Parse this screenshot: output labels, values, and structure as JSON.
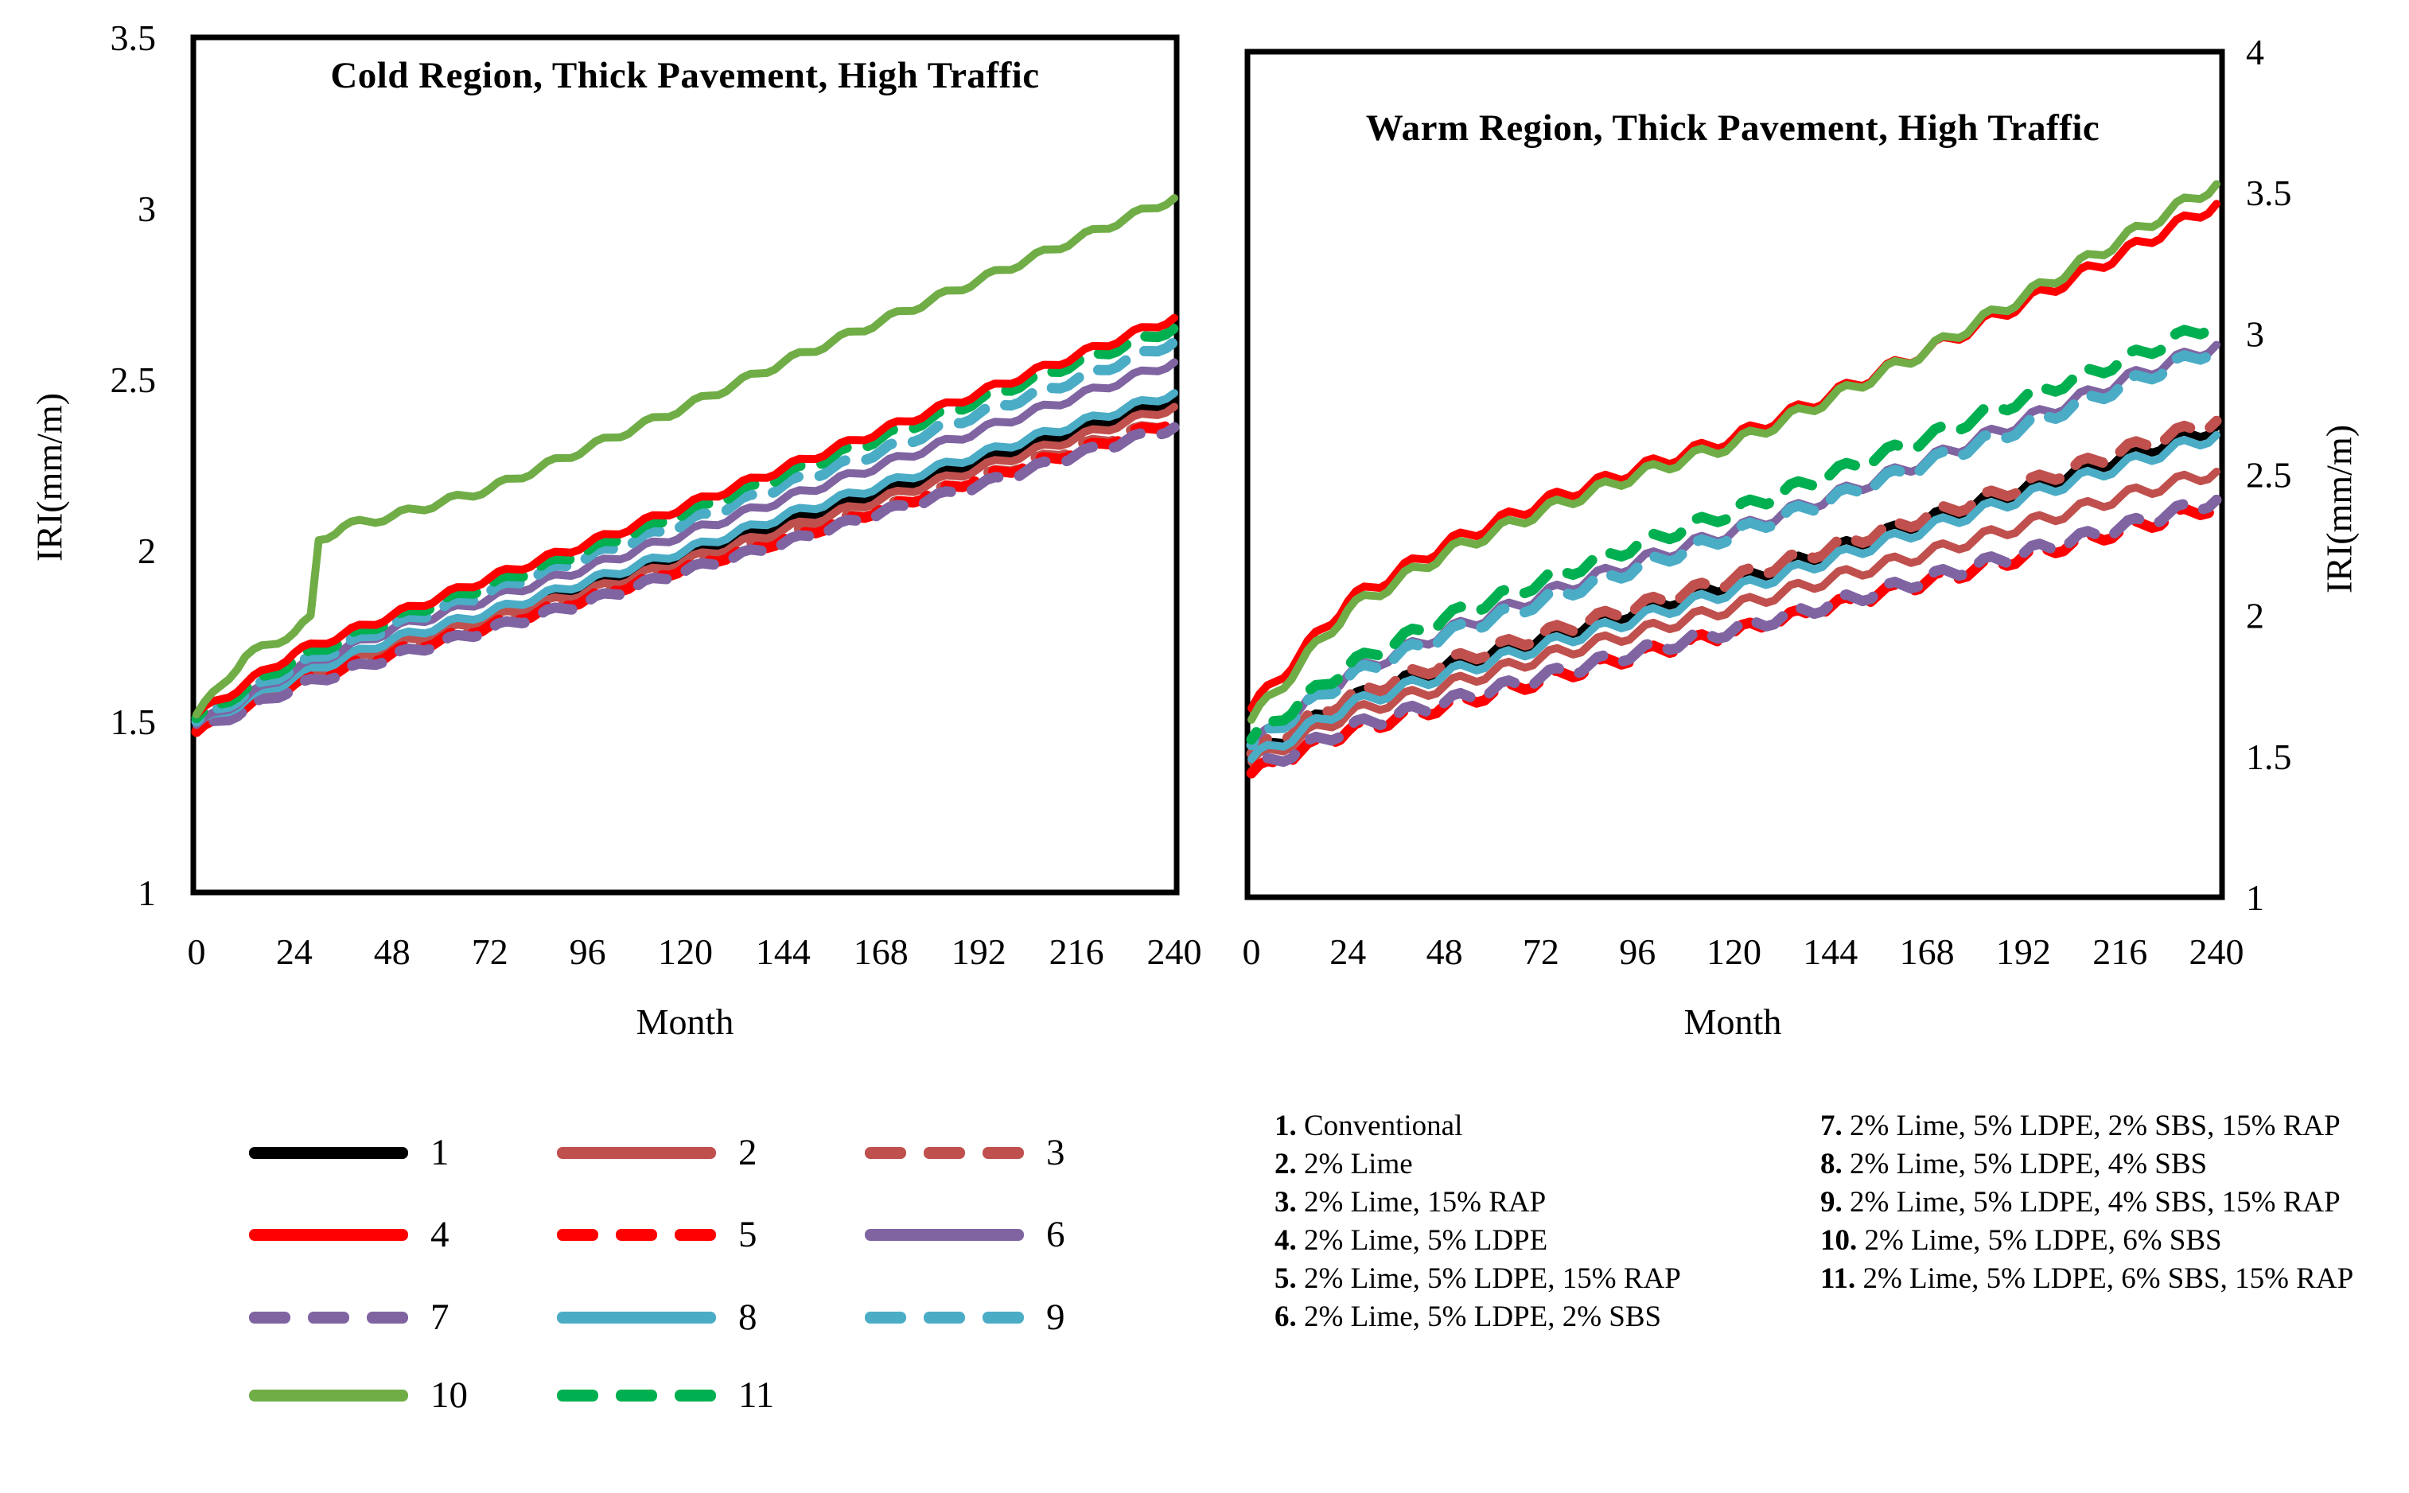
{
  "chart_data": [
    {
      "id": "cold",
      "type": "line",
      "title": "Cold Region, Thick Pavement, High Traffic",
      "xlabel": "Month",
      "ylabel": "IRI(mm/m)",
      "y_axis_side": "left",
      "xlim": [
        0,
        240
      ],
      "ylim": [
        1,
        3.5
      ],
      "grid": false,
      "x_ticks": [
        "0",
        "24",
        "48",
        "72",
        "96",
        "120",
        "144",
        "168",
        "192",
        "216",
        "240"
      ],
      "y_ticks": [
        "3.5",
        "3",
        "2.5",
        "2",
        "1.5",
        "1"
      ],
      "y_tick_values": [
        3.5,
        3,
        2.5,
        2,
        1.5,
        1
      ],
      "months": [
        0,
        24,
        48,
        72,
        96,
        120,
        144,
        168,
        192,
        216,
        240
      ],
      "seasonal_wave_amplitude": 0.011,
      "series": [
        {
          "id": "1",
          "label": "1",
          "color": "#000000",
          "dashed": false,
          "values": [
            1.48,
            1.63,
            1.73,
            1.81,
            1.9,
            1.99,
            2.08,
            2.17,
            2.26,
            2.35,
            2.44
          ]
        },
        {
          "id": "2",
          "label": "2",
          "color": "#C0504D",
          "dashed": false,
          "values": [
            1.48,
            1.62,
            1.72,
            1.8,
            1.88,
            1.97,
            2.06,
            2.15,
            2.24,
            2.33,
            2.42
          ]
        },
        {
          "id": "3",
          "label": "3",
          "color": "#C0504D",
          "dashed": true,
          "values": [
            1.47,
            1.61,
            1.7,
            1.78,
            1.86,
            1.95,
            2.04,
            2.12,
            2.21,
            2.3,
            2.38
          ]
        },
        {
          "id": "4",
          "label": "4",
          "color": "#FF0000",
          "dashed": false,
          "values": [
            1.52,
            1.7,
            1.81,
            1.92,
            2.02,
            2.13,
            2.24,
            2.35,
            2.46,
            2.57,
            2.68
          ]
        },
        {
          "id": "5",
          "label": "5",
          "color": "#FF0000",
          "dashed": true,
          "values": [
            1.47,
            1.61,
            1.7,
            1.78,
            1.86,
            1.95,
            2.03,
            2.12,
            2.21,
            2.29,
            2.38
          ]
        },
        {
          "id": "6",
          "label": "6",
          "color": "#8064A2",
          "dashed": false,
          "values": [
            1.49,
            1.65,
            1.77,
            1.86,
            1.95,
            2.05,
            2.15,
            2.25,
            2.35,
            2.45,
            2.55
          ]
        },
        {
          "id": "7",
          "label": "7",
          "color": "#8064A2",
          "dashed": true,
          "values": [
            1.47,
            1.6,
            1.69,
            1.77,
            1.85,
            1.94,
            2.02,
            2.11,
            2.19,
            2.28,
            2.36
          ]
        },
        {
          "id": "8",
          "label": "8",
          "color": "#4BACC6",
          "dashed": false,
          "values": [
            1.49,
            1.63,
            1.74,
            1.82,
            1.91,
            2.0,
            2.1,
            2.19,
            2.28,
            2.37,
            2.46
          ]
        },
        {
          "id": "9",
          "label": "9",
          "color": "#4BACC6",
          "dashed": true,
          "values": [
            1.5,
            1.66,
            1.78,
            1.88,
            1.98,
            2.08,
            2.19,
            2.29,
            2.4,
            2.5,
            2.61
          ]
        },
        {
          "id": "10",
          "label": "10",
          "color": "#70AD47",
          "dashed": false,
          "x": [
            0,
            12,
            24,
            28,
            30,
            36,
            48,
            72,
            96,
            120,
            144,
            168,
            192,
            216,
            240
          ],
          "values": [
            1.52,
            1.69,
            1.76,
            1.8,
            2.03,
            2.07,
            2.1,
            2.18,
            2.3,
            2.42,
            2.55,
            2.67,
            2.79,
            2.91,
            3.03
          ]
        },
        {
          "id": "11",
          "label": "11",
          "color": "#00B050",
          "dashed": true,
          "values": [
            1.51,
            1.68,
            1.8,
            1.9,
            2.0,
            2.11,
            2.22,
            2.33,
            2.44,
            2.55,
            2.65
          ]
        }
      ]
    },
    {
      "id": "warm",
      "type": "line",
      "title": "Warm Region, Thick Pavement, High Traffic",
      "xlabel": "Month",
      "ylabel": "IRI(mm/m)",
      "y_axis_side": "right",
      "xlim": [
        0,
        240
      ],
      "ylim": [
        1,
        4
      ],
      "grid": false,
      "x_ticks": [
        "0",
        "24",
        "48",
        "72",
        "96",
        "120",
        "144",
        "168",
        "192",
        "216",
        "240"
      ],
      "y_ticks": [
        "4",
        "3.5",
        "3",
        "2.5",
        "2",
        "1.5",
        "1"
      ],
      "y_tick_values": [
        4,
        3.5,
        3,
        2.5,
        2,
        1.5,
        1
      ],
      "months": [
        0,
        24,
        48,
        72,
        96,
        120,
        144,
        168,
        192,
        216,
        240
      ],
      "seasonal_wave_amplitude": 0.022,
      "series": [
        {
          "id": "1",
          "label": "1",
          "color": "#000000",
          "dashed": false,
          "values": [
            1.5,
            1.7,
            1.82,
            1.92,
            2.02,
            2.12,
            2.23,
            2.34,
            2.45,
            2.56,
            2.67
          ]
        },
        {
          "id": "2",
          "label": "2",
          "color": "#C0504D",
          "dashed": false,
          "values": [
            1.48,
            1.65,
            1.75,
            1.85,
            1.94,
            2.03,
            2.13,
            2.22,
            2.32,
            2.42,
            2.51
          ]
        },
        {
          "id": "3",
          "label": "3",
          "color": "#C0504D",
          "dashed": true,
          "values": [
            1.51,
            1.71,
            1.83,
            1.93,
            2.03,
            2.13,
            2.24,
            2.35,
            2.46,
            2.58,
            2.69
          ]
        },
        {
          "id": "4",
          "label": "4",
          "color": "#FF0000",
          "dashed": false,
          "values": [
            1.67,
            2.05,
            2.25,
            2.4,
            2.52,
            2.63,
            2.78,
            2.94,
            3.11,
            3.28,
            3.46
          ]
        },
        {
          "id": "5",
          "label": "5",
          "color": "#FF0000",
          "dashed": true,
          "values": [
            1.44,
            1.59,
            1.68,
            1.77,
            1.86,
            1.94,
            2.03,
            2.12,
            2.21,
            2.3,
            2.39
          ]
        },
        {
          "id": "6",
          "label": "6",
          "color": "#8064A2",
          "dashed": false,
          "values": [
            1.54,
            1.79,
            1.94,
            2.07,
            2.19,
            2.3,
            2.42,
            2.55,
            2.69,
            2.83,
            2.96
          ]
        },
        {
          "id": "7",
          "label": "7",
          "color": "#8064A2",
          "dashed": true,
          "values": [
            1.45,
            1.6,
            1.69,
            1.78,
            1.87,
            1.95,
            2.04,
            2.13,
            2.22,
            2.31,
            2.41
          ]
        },
        {
          "id": "8",
          "label": "8",
          "color": "#4BACC6",
          "dashed": false,
          "values": [
            1.49,
            1.68,
            1.79,
            1.89,
            1.99,
            2.09,
            2.2,
            2.31,
            2.42,
            2.53,
            2.64
          ]
        },
        {
          "id": "9",
          "label": "9",
          "color": "#4BACC6",
          "dashed": true,
          "values": [
            1.54,
            1.78,
            1.93,
            2.05,
            2.17,
            2.29,
            2.41,
            2.54,
            2.67,
            2.81,
            2.95
          ]
        },
        {
          "id": "10",
          "label": "10",
          "color": "#70AD47",
          "dashed": false,
          "values": [
            1.63,
            2.02,
            2.22,
            2.37,
            2.5,
            2.61,
            2.77,
            2.94,
            3.13,
            3.33,
            3.53
          ]
        },
        {
          "id": "11",
          "label": "11",
          "color": "#00B050",
          "dashed": true,
          "values": [
            1.56,
            1.82,
            1.99,
            2.12,
            2.25,
            2.37,
            2.5,
            2.63,
            2.77,
            2.9,
            3.04
          ]
        }
      ]
    }
  ],
  "line_key": {
    "items": [
      {
        "num": "1",
        "series": "1"
      },
      {
        "num": "2",
        "series": "2"
      },
      {
        "num": "3",
        "series": "3"
      },
      {
        "num": "4",
        "series": "4"
      },
      {
        "num": "5",
        "series": "5"
      },
      {
        "num": "6",
        "series": "6"
      },
      {
        "num": "7",
        "series": "7"
      },
      {
        "num": "8",
        "series": "8"
      },
      {
        "num": "9",
        "series": "9"
      },
      {
        "num": "10",
        "series": "10"
      },
      {
        "num": "11",
        "series": "11"
      }
    ]
  },
  "notes": {
    "col1": [
      {
        "num": "1.",
        "text": "Conventional"
      },
      {
        "num": "2.",
        "text": "2% Lime"
      },
      {
        "num": "3.",
        "text": "2% Lime, 15% RAP"
      },
      {
        "num": "4.",
        "text": "2% Lime, 5% LDPE"
      },
      {
        "num": "5.",
        "text": "2% Lime, 5% LDPE, 15% RAP"
      },
      {
        "num": "6.",
        "text": "2% Lime, 5% LDPE, 2% SBS"
      }
    ],
    "col2": [
      {
        "num": "7.",
        "text": "2% Lime, 5% LDPE, 2% SBS, 15% RAP"
      },
      {
        "num": "8.",
        "text": "2% Lime, 5% LDPE, 4% SBS"
      },
      {
        "num": "9.",
        "text": "2% Lime, 5% LDPE, 4% SBS, 15% RAP"
      },
      {
        "num": "10.",
        "text": "2% Lime, 5% LDPE, 6% SBS"
      },
      {
        "num": "11.",
        "text": "2% Lime, 5% LDPE, 6% SBS, 15% RAP"
      }
    ]
  }
}
